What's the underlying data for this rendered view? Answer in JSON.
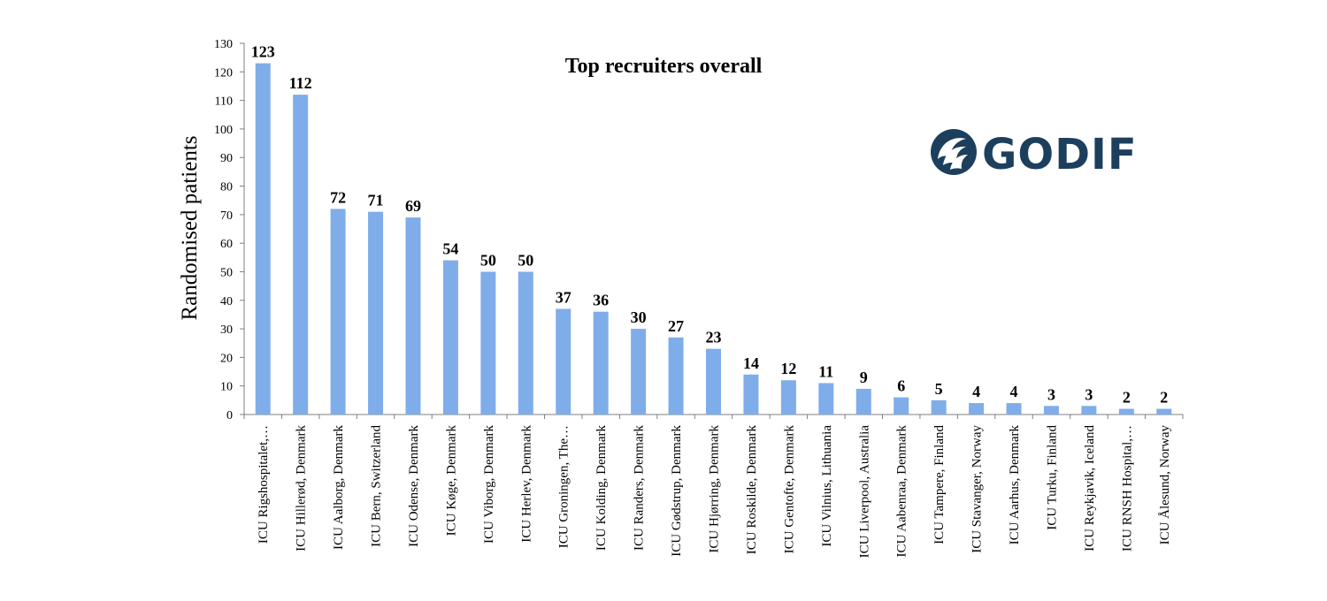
{
  "chart_data": {
    "type": "bar",
    "title": "Top recruiters overall",
    "ylabel": "Randomised patients",
    "xlabel": "",
    "ylim": [
      0,
      130
    ],
    "ytick_step": 10,
    "grid": false,
    "legend": "none",
    "bar_color": "#7fadea",
    "categories": [
      "ICU Rigshospitalet,…",
      "ICU Hillerød, Denmark",
      "ICU Aalborg, Denmark",
      "ICU Bern, Switzerland",
      "ICU Odense, Denmark",
      "ICU Køge, Denmark",
      "ICU Viborg, Denmark",
      "ICU Herlev, Denmark",
      "ICU Groningen, The…",
      "ICU Kolding, Denmark",
      "ICU Randers, Denmark",
      "ICU Gødstrup, Denmark",
      "ICU Hjørring, Denmark",
      "ICU Roskilde, Denmark",
      "ICU Gentofte, Denmark",
      "ICU Vilnius, Lithuania",
      "ICU Liverpool, Australia",
      "ICU Aabenraa, Denmark",
      "ICU Tampere, Finland",
      "ICU Stavanger, Norway",
      "ICU Aarhus, Denmark",
      "ICU Turku, Finland",
      "ICU Reykjavik, Iceland",
      "ICU RNSH Hospital,…",
      "ICU Ålesund, Norway"
    ],
    "values": [
      123,
      112,
      72,
      71,
      69,
      54,
      50,
      50,
      37,
      36,
      30,
      27,
      23,
      14,
      12,
      11,
      9,
      6,
      5,
      4,
      4,
      3,
      3,
      2,
      2
    ]
  },
  "logo": {
    "text": "GODIF",
    "icon": "wave-circle-icon",
    "color": "#1d3f5e"
  }
}
